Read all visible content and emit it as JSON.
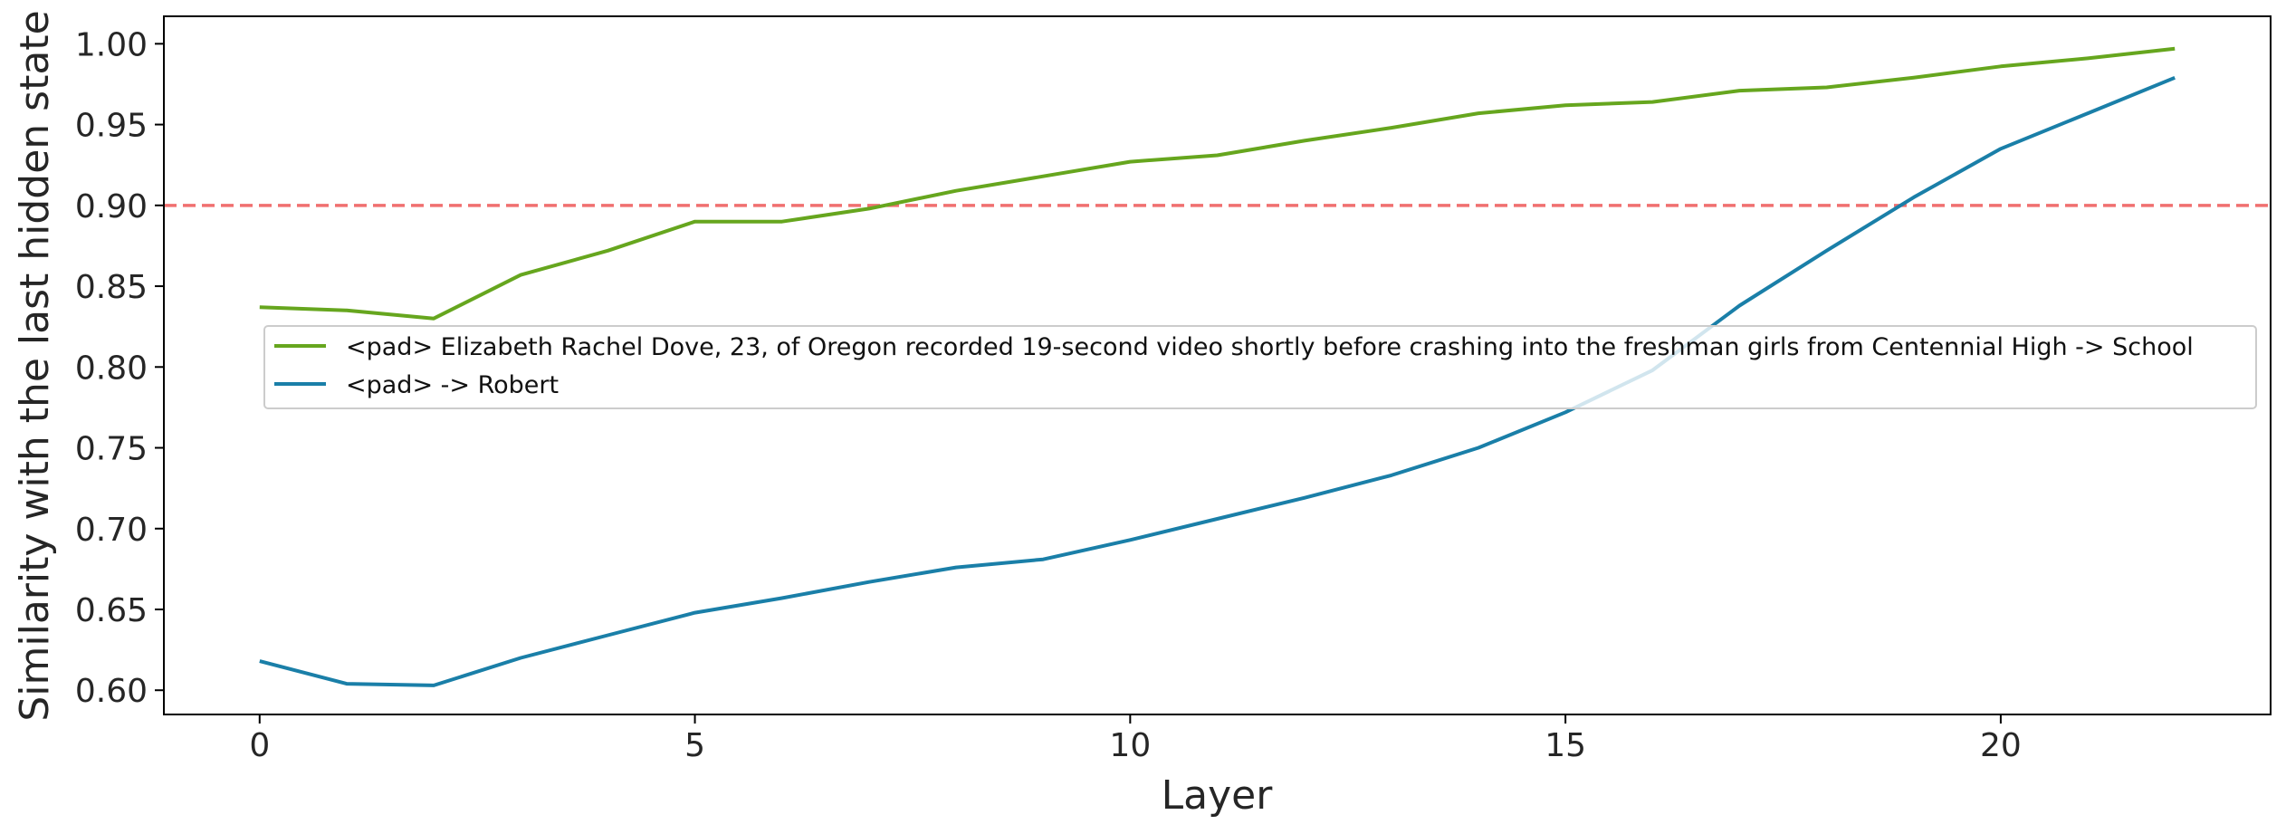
{
  "chart_data": {
    "type": "line",
    "xlabel": "Layer",
    "ylabel": "Similarity with the last hidden state",
    "xlim": [
      -1.1,
      23.1
    ],
    "ylim": [
      0.585,
      1.017
    ],
    "x_ticks": [
      0,
      5,
      10,
      15,
      20
    ],
    "x_tick_labels": [
      "0",
      "5",
      "10",
      "15",
      "20"
    ],
    "y_ticks": [
      0.6,
      0.65,
      0.7,
      0.75,
      0.8,
      0.85,
      0.9,
      0.95,
      1.0
    ],
    "y_tick_labels": [
      "0.60",
      "0.65",
      "0.70",
      "0.75",
      "0.80",
      "0.85",
      "0.90",
      "0.95",
      "1.00"
    ],
    "grid": false,
    "legend_position": "center-right",
    "reference_line": {
      "y": 0.9,
      "style": "dashed",
      "color": "#f07070"
    },
    "x": [
      0,
      1,
      2,
      3,
      4,
      5,
      6,
      7,
      8,
      9,
      10,
      11,
      12,
      13,
      14,
      15,
      16,
      17,
      18,
      19,
      20,
      21,
      22
    ],
    "series": [
      {
        "name": "<pad> Elizabeth Rachel Dove, 23, of Oregon recorded 19-second video shortly before crashing into the freshman girls from Centennial High -> School",
        "color": "#66a61e",
        "values": [
          0.837,
          0.835,
          0.83,
          0.857,
          0.872,
          0.89,
          0.89,
          0.898,
          0.909,
          0.918,
          0.927,
          0.931,
          0.94,
          0.948,
          0.957,
          0.962,
          0.964,
          0.971,
          0.973,
          0.979,
          0.986,
          0.991,
          0.997
        ]
      },
      {
        "name": "<pad> -> Robert",
        "color": "#1a7fa8",
        "values": [
          0.618,
          0.604,
          0.603,
          0.62,
          0.634,
          0.648,
          0.657,
          0.667,
          0.676,
          0.681,
          0.693,
          0.706,
          0.719,
          0.733,
          0.75,
          0.772,
          0.798,
          0.838,
          0.872,
          0.905,
          0.935,
          0.957,
          0.979
        ]
      }
    ]
  }
}
